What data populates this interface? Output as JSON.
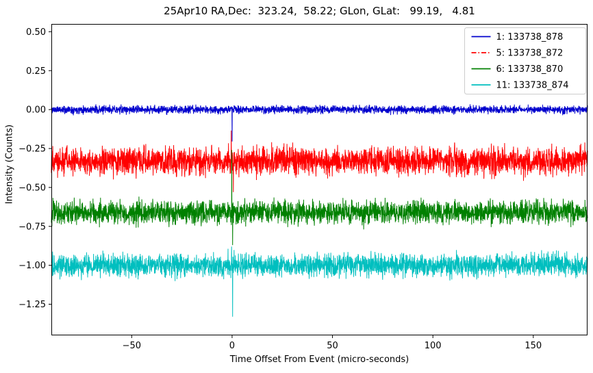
{
  "chart_data": {
    "type": "line",
    "title": "25Apr10 RA,Dec:  323.24,  58.22; GLon, GLat:   99.19,   4.81",
    "xlabel": "Time Offset From Event (micro-seconds)",
    "ylabel": "Intensity (Counts)",
    "xlim": [
      -90,
      177
    ],
    "ylim": [
      -1.45,
      0.55
    ],
    "xticks": [
      -50,
      0,
      50,
      100,
      150
    ],
    "yticks": [
      0.5,
      0.25,
      0.0,
      -0.25,
      -0.5,
      -0.75,
      -1.0,
      -1.25
    ],
    "grid": false,
    "legend_position": "upper right",
    "legend_border_color": "#cccccc",
    "axes_color": "#000000",
    "background_color": "#ffffff",
    "description": "Four noisy intensity traces offset vertically; transient spikes near time offset 0",
    "series": [
      {
        "name": "1: 133738_878",
        "color": "#0000cd",
        "linestyle": "solid",
        "baseline": 0.0,
        "noise_std": 0.013,
        "spikes": [
          {
            "x": 0.0,
            "y": -0.205
          }
        ]
      },
      {
        "name": "5: 133738_872",
        "color": "#ff0000",
        "linestyle": "dashdot",
        "baseline": -0.33,
        "noise_std": 0.045,
        "spikes": [
          {
            "x": -0.4,
            "y": -0.135
          },
          {
            "x": 0.6,
            "y": -0.53
          }
        ]
      },
      {
        "name": "6: 133738_870",
        "color": "#008000",
        "linestyle": "solid",
        "baseline": -0.66,
        "noise_std": 0.037,
        "spikes": [
          {
            "x": -0.2,
            "y": -0.26
          },
          {
            "x": 0.3,
            "y": -0.87
          }
        ]
      },
      {
        "name": "11: 133738_874",
        "color": "#00bfbf",
        "linestyle": "solid",
        "baseline": -1.0,
        "noise_std": 0.037,
        "spikes": [
          {
            "x": -0.3,
            "y": -0.88
          },
          {
            "x": 0.3,
            "y": -1.33
          }
        ]
      }
    ],
    "n_points": 3000,
    "seeds": [
      11,
      52,
      63,
      114
    ]
  }
}
